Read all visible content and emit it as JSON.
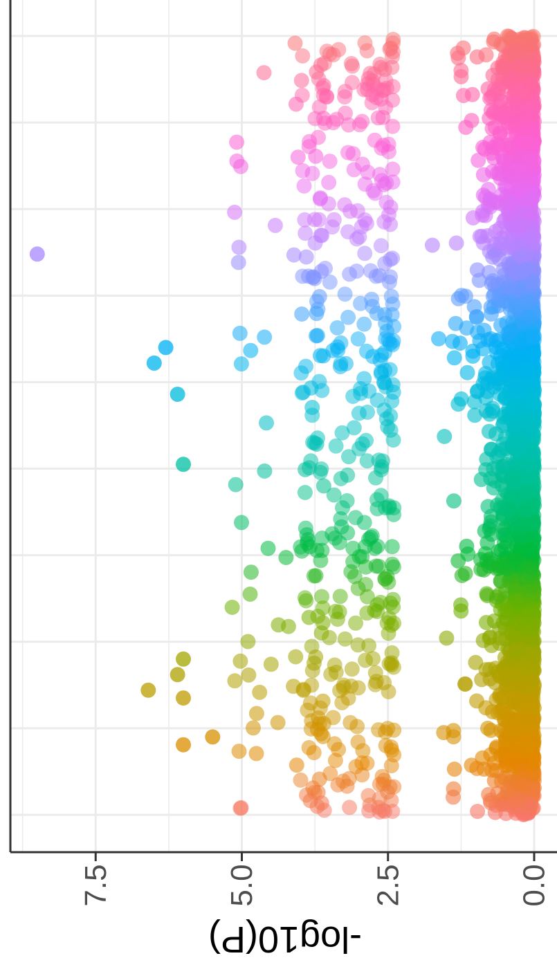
{
  "chart_data": {
    "type": "scatter",
    "orientation": "rotated-90",
    "title": "",
    "ylabel": "-log10(P)",
    "xlabel": "",
    "y_ticks": [
      0.0,
      2.5,
      5.0,
      7.5
    ],
    "y_tick_labels": [
      "0.0",
      "2.5",
      "5.0",
      "7.5"
    ],
    "ylim": [
      0,
      8.9
    ],
    "grid": true,
    "legend": "none",
    "x_gridline_count": 10,
    "color_gradient": [
      "#f8766d",
      "#e58700",
      "#c99800",
      "#a3a500",
      "#6bb100",
      "#00ba38",
      "#00bf7d",
      "#00c0af",
      "#00bcd8",
      "#00b0f6",
      "#619cff",
      "#b983ff",
      "#e76bf3",
      "#fd61d1",
      "#ff67a4",
      "#f8766d"
    ],
    "notable_points": [
      {
        "x": 0.72,
        "y": 8.5
      },
      {
        "x": 0.58,
        "y": 6.5
      },
      {
        "x": 0.6,
        "y": 6.3
      },
      {
        "x": 0.54,
        "y": 6.1
      },
      {
        "x": 0.16,
        "y": 6.6
      },
      {
        "x": 0.18,
        "y": 6.1
      },
      {
        "x": 0.45,
        "y": 6.0
      },
      {
        "x": 0.2,
        "y": 6.0
      },
      {
        "x": 0.15,
        "y": 6.0
      },
      {
        "x": 0.09,
        "y": 6.0
      },
      {
        "x": 0.1,
        "y": 5.5
      }
    ]
  },
  "labels": {
    "y_axis_title": "-log10(P)",
    "tick_0": "0.0",
    "tick_1": "2.5",
    "tick_2": "5.0",
    "tick_3": "7.5"
  }
}
